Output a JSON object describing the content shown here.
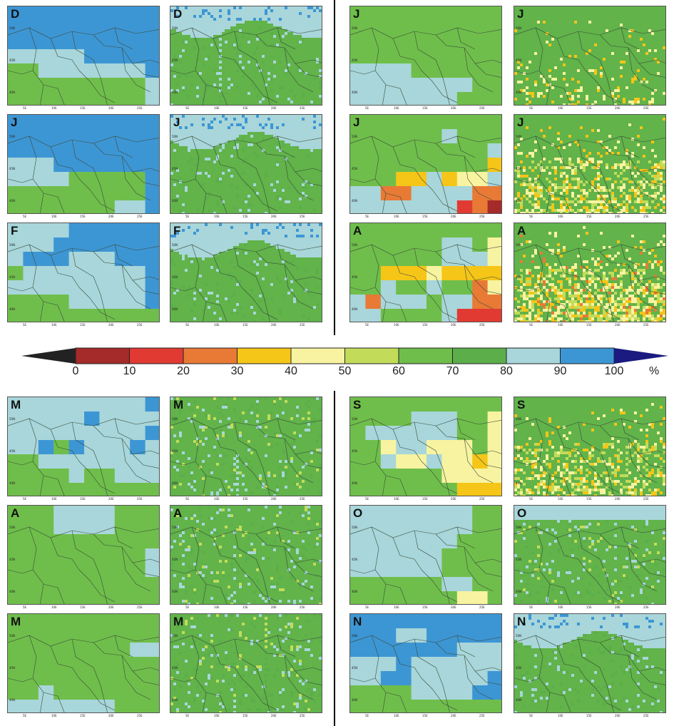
{
  "colors": {
    "c0": "#a52a2a",
    "c10": "#e03a32",
    "c20": "#e87a36",
    "c30": "#f5c518",
    "c40": "#f7f3a0",
    "c50": "#c2dc5a",
    "c60": "#6fbe4b",
    "c70": "#5cae4a",
    "c80": "#a8d6da",
    "c90": "#3d96d4",
    "c100": "#1a1a80",
    "land": "#61b34a"
  },
  "legend": {
    "ticks": [
      "0",
      "10",
      "20",
      "30",
      "40",
      "50",
      "60",
      "70",
      "80",
      "90",
      "100"
    ],
    "unit": "%"
  },
  "axis_labels": {
    "lat": [
      "50N",
      "45N",
      "40N"
    ],
    "lon": [
      "5E",
      "10E",
      "15E",
      "20E",
      "25E"
    ]
  },
  "panels": [
    {
      "letter": "D",
      "kind": "coarse",
      "grid": [
        "9999999999",
        "9999999999",
        "9999999999",
        "8888899999",
        "7788888889",
        "7777777778",
        "7777777778"
      ]
    },
    {
      "letter": "D",
      "kind": "fine",
      "pattern": "winter"
    },
    {
      "letter": "J",
      "kind": "coarse",
      "grid": [
        "7777777777",
        "7777777777",
        "7777777777",
        "7777777777",
        "8888777777",
        "8888888877",
        "8888888777"
      ]
    },
    {
      "letter": "J",
      "kind": "fine",
      "pattern": "summer1"
    },
    {
      "letter": "J",
      "kind": "coarse",
      "grid": [
        "9999999999",
        "9999999999",
        "9999999999",
        "8889999999",
        "8888777779",
        "7777777779",
        "7777777889"
      ]
    },
    {
      "letter": "J",
      "kind": "fine",
      "pattern": "winter2"
    },
    {
      "letter": "J",
      "kind": "coarse",
      "grid": [
        "7777777777",
        "7777778777",
        "7777777778",
        "7777777774",
        "7774484558",
        "8833888833",
        "8888888231"
      ]
    },
    {
      "letter": "J",
      "kind": "fine",
      "pattern": "summer2"
    },
    {
      "letter": "F",
      "kind": "coarse",
      "grid": [
        "8888999999",
        "8889999999",
        "8999888999",
        "7888888889",
        "8888888889",
        "7777888889",
        "7777777777"
      ]
    },
    {
      "letter": "F",
      "kind": "fine",
      "pattern": "winter3"
    },
    {
      "letter": "A",
      "kind": "coarse",
      "grid": [
        "7777777777",
        "7777778875",
        "7777778885",
        "7744454444",
        "7787787735",
        "8388878833",
        "8877778222"
      ]
    },
    {
      "letter": "A",
      "kind": "fine",
      "pattern": "summer3"
    },
    {
      "letter": "M",
      "kind": "coarse",
      "grid": [
        "8888888889",
        "8888898888",
        "8888888889",
        "8897988898",
        "7788888888",
        "7777877888",
        "7777777777"
      ]
    },
    {
      "letter": "M",
      "kind": "fine",
      "pattern": "spring"
    },
    {
      "letter": "S",
      "kind": "coarse",
      "grid": [
        "7777777777",
        "7777888775",
        "7888888775",
        "7758855575",
        "7785585545",
        "7777775555",
        "7777777444"
      ]
    },
    {
      "letter": "S",
      "kind": "fine",
      "pattern": "autumn"
    },
    {
      "letter": "A",
      "kind": "coarse",
      "grid": [
        "7778888777",
        "7778888777",
        "7777777777",
        "7777777778",
        "7777777778",
        "7777777777",
        "7777777777"
      ]
    },
    {
      "letter": "A",
      "kind": "fine",
      "pattern": "spring2"
    },
    {
      "letter": "O",
      "kind": "coarse",
      "grid": [
        "8888888877",
        "8888888877",
        "8888888777",
        "8888887777",
        "8888887777",
        "7777778877",
        "7777777557"
      ]
    },
    {
      "letter": "O",
      "kind": "fine",
      "pattern": "autumn2"
    },
    {
      "letter": "M",
      "kind": "coarse",
      "grid": [
        "7777777777",
        "7777777777",
        "7777777788",
        "7777777777",
        "7777777777",
        "7787777777",
        "8888888777"
      ]
    },
    {
      "letter": "M",
      "kind": "fine",
      "pattern": "spring3"
    },
    {
      "letter": "N",
      "kind": "coarse",
      "grid": [
        "9999999999",
        "9998899999",
        "9999999888",
        "8889888888",
        "8899888889",
        "7777888899",
        "7777777777"
      ]
    },
    {
      "letter": "N",
      "kind": "fine",
      "pattern": "autumn3"
    }
  ]
}
